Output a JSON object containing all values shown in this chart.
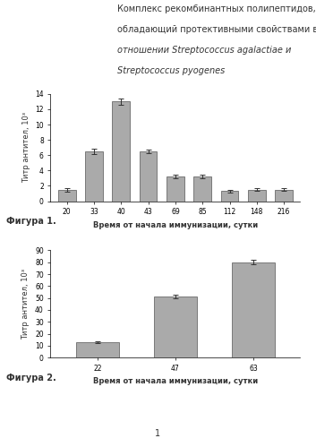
{
  "title_lines": [
    "Комплекс рекомбинантных полипептидов,",
    "обладающий протективными свойствами в",
    "отношении Streptococcus agalactiae и",
    "Streptococcus pyogenes"
  ],
  "title_italic_lines": [
    2,
    3
  ],
  "chart1": {
    "categories": [
      20,
      33,
      40,
      43,
      69,
      85,
      112,
      148,
      216
    ],
    "values": [
      1.5,
      6.5,
      13.0,
      6.5,
      3.2,
      3.2,
      1.3,
      1.5,
      1.5
    ],
    "errors": [
      0.25,
      0.3,
      0.4,
      0.25,
      0.2,
      0.2,
      0.15,
      0.15,
      0.15
    ],
    "ylabel": "Титр антител, 10³",
    "xlabel": "Время от начала иммунизации, сутки",
    "ylim": [
      0,
      14
    ],
    "yticks": [
      0,
      2,
      4,
      6,
      8,
      10,
      12,
      14
    ],
    "bar_color": "#aaaaaa",
    "bar_edge_color": "#555555",
    "caption": "Фигура 1."
  },
  "chart2": {
    "categories": [
      22,
      47,
      63
    ],
    "values": [
      13.0,
      51.0,
      80.0
    ],
    "errors": [
      0.5,
      1.5,
      2.0
    ],
    "ylabel": "Титр антител, 10³",
    "xlabel": "Время от начала иммунизации, сутки",
    "ylim": [
      0,
      90
    ],
    "yticks": [
      0,
      10,
      20,
      30,
      40,
      50,
      60,
      70,
      80,
      90
    ],
    "bar_color": "#aaaaaa",
    "bar_edge_color": "#555555",
    "caption": "Фигура 2."
  },
  "page_number": "1",
  "bg_color": "#ffffff",
  "text_color": "#333333",
  "font_size_title": 7,
  "font_size_axis": 6,
  "font_size_tick": 5.5,
  "font_size_caption": 7,
  "font_size_page": 7
}
